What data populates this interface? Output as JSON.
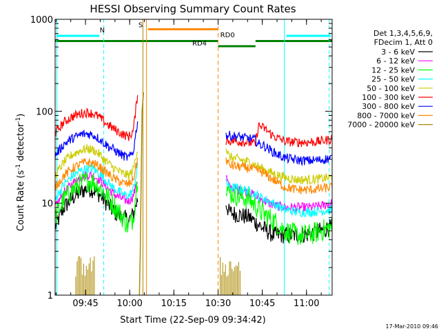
{
  "chart_data": {
    "type": "line",
    "title": "HESSI Observing Summary Count Rates",
    "xlabel": "Start Time (22-Sep-09 09:34:42)",
    "ylabel": "Count Rate (s",
    "ylabel_sup": "-1",
    "ylabel_tail": " detector",
    "ylabel_tail_sup": "-1",
    "ylabel_close": ")",
    "x_unit": "minutes after 09:34:42",
    "xlim": [
      0,
      94
    ],
    "ylim": [
      1,
      1000
    ],
    "yscale": "log",
    "grid": false,
    "x_ticks": [
      {
        "label": "09:45",
        "value": 10.3
      },
      {
        "label": "10:00",
        "value": 25.3
      },
      {
        "label": "10:15",
        "value": 40.3
      },
      {
        "label": "10:30",
        "value": 55.3
      },
      {
        "label": "10:45",
        "value": 70.3
      },
      {
        "label": "11:00",
        "value": 85.3
      }
    ],
    "y_ticks": [
      {
        "label": "1",
        "value": 1
      },
      {
        "label": "10",
        "value": 10
      },
      {
        "label": "100",
        "value": 100
      },
      {
        "label": "1000",
        "value": 1000
      }
    ],
    "legend": {
      "header": [
        "Det 1,3,4,5,6,9,",
        "FDecim 1, Att 0"
      ],
      "placement": "right"
    },
    "series": [
      {
        "name": "3 - 6 keV",
        "color": "#000000",
        "segments": [
          [
            [
              0,
              5.5
            ],
            [
              3,
              9
            ],
            [
              6,
              11.5
            ],
            [
              9,
              13.5
            ],
            [
              11,
              14.5
            ],
            [
              13,
              14
            ],
            [
              15,
              12.5
            ],
            [
              17,
              10.5
            ],
            [
              20,
              8
            ],
            [
              23,
              7
            ],
            [
              25,
              6.5
            ],
            [
              26.5,
              7.5
            ],
            [
              28,
              11
            ]
          ],
          [
            [
              58,
              10
            ],
            [
              59,
              8
            ],
            [
              62,
              7.5
            ],
            [
              66,
              7
            ],
            [
              70,
              5.5
            ],
            [
              74,
              4.5
            ],
            [
              78,
              4.5
            ],
            [
              82,
              4.5
            ],
            [
              86,
              4.6
            ],
            [
              90,
              5
            ],
            [
              94,
              5.5
            ]
          ]
        ]
      },
      {
        "name": "6 - 12 keV",
        "color": "#ff00ff",
        "segments": [
          [
            [
              0,
              9
            ],
            [
              3,
              13
            ],
            [
              6,
              16.5
            ],
            [
              9,
              19.5
            ],
            [
              11,
              20.5
            ],
            [
              13,
              20
            ],
            [
              15,
              18
            ],
            [
              17,
              15.5
            ],
            [
              20,
              12.5
            ],
            [
              23,
              11
            ],
            [
              25,
              10.5
            ],
            [
              26.5,
              12
            ],
            [
              28,
              18
            ]
          ],
          [
            [
              58,
              20
            ],
            [
              59,
              15
            ],
            [
              62,
              14
            ],
            [
              66,
              13
            ],
            [
              70,
              11
            ],
            [
              74,
              9.5
            ],
            [
              78,
              9
            ],
            [
              82,
              9
            ],
            [
              86,
              9
            ],
            [
              90,
              9.3
            ],
            [
              94,
              10
            ]
          ]
        ]
      },
      {
        "name": "12 - 25 keV",
        "color": "#00ff00",
        "segments": [
          [
            [
              0,
              7
            ],
            [
              3,
              11
            ],
            [
              6,
              14
            ],
            [
              9,
              16.5
            ],
            [
              11,
              17.5
            ],
            [
              13,
              17
            ],
            [
              15,
              15
            ],
            [
              17,
              12.5
            ],
            [
              20,
              9.5
            ],
            [
              23,
              7
            ],
            [
              25,
              5.5
            ],
            [
              26.5,
              7
            ],
            [
              28,
              20
            ]
          ],
          [
            [
              58,
              16
            ],
            [
              59,
              13
            ],
            [
              62,
              12
            ],
            [
              66,
              11
            ],
            [
              70,
              8
            ],
            [
              74,
              6.5
            ],
            [
              78,
              5
            ],
            [
              82,
              4.5
            ],
            [
              86,
              4.5
            ],
            [
              90,
              5
            ],
            [
              94,
              5.5
            ]
          ]
        ]
      },
      {
        "name": "25 - 50 keV",
        "color": "#00ffff",
        "segments": [
          [
            [
              0,
              11
            ],
            [
              3,
              16
            ],
            [
              6,
              20
            ],
            [
              9,
              23
            ],
            [
              11,
              24
            ],
            [
              13,
              23.5
            ],
            [
              15,
              21
            ],
            [
              17,
              18
            ],
            [
              20,
              14.5
            ],
            [
              23,
              12.5
            ],
            [
              25,
              12
            ],
            [
              26.5,
              14
            ],
            [
              28,
              25
            ]
          ],
          [
            [
              58,
              18
            ],
            [
              59,
              15
            ],
            [
              62,
              14.5
            ],
            [
              66,
              13.5
            ],
            [
              70,
              11.5
            ],
            [
              74,
              10
            ],
            [
              78,
              8.5
            ],
            [
              82,
              8
            ],
            [
              86,
              8
            ],
            [
              90,
              8.2
            ],
            [
              94,
              8.5
            ]
          ]
        ]
      },
      {
        "name": "50 - 100 keV",
        "color": "#cccc00",
        "segments": [
          [
            [
              0,
              20
            ],
            [
              3,
              28
            ],
            [
              6,
              34
            ],
            [
              9,
              38
            ],
            [
              11,
              39
            ],
            [
              13,
              38
            ],
            [
              15,
              34
            ],
            [
              17,
              29
            ],
            [
              20,
              24
            ],
            [
              23,
              21
            ],
            [
              25,
              20
            ],
            [
              26.5,
              23
            ],
            [
              28,
              40
            ]
          ],
          [
            [
              58,
              40
            ],
            [
              59,
              32
            ],
            [
              62,
              30
            ],
            [
              66,
              28
            ],
            [
              70,
              24
            ],
            [
              74,
              21
            ],
            [
              78,
              19
            ],
            [
              82,
              18
            ],
            [
              86,
              18
            ],
            [
              90,
              18.5
            ],
            [
              94,
              19
            ]
          ]
        ]
      },
      {
        "name": "100 - 300 keV",
        "color": "#ff0000",
        "segments": [
          [
            [
              0,
              58
            ],
            [
              3,
              76
            ],
            [
              6,
              88
            ],
            [
              9,
              95
            ],
            [
              11,
              97
            ],
            [
              13,
              94
            ],
            [
              15,
              86
            ],
            [
              17,
              75
            ],
            [
              20,
              64
            ],
            [
              23,
              56
            ],
            [
              25,
              53
            ],
            [
              26.5,
              60
            ],
            [
              28,
              155
            ]
          ],
          [
            [
              58,
              48
            ],
            [
              62,
              47
            ],
            [
              65,
              46
            ],
            [
              67,
              45
            ],
            [
              68,
              44
            ],
            [
              69,
              70
            ],
            [
              71,
              65
            ],
            [
              74,
              54
            ],
            [
              78,
              47
            ],
            [
              82,
              46
            ],
            [
              86,
              46
            ],
            [
              90,
              47
            ],
            [
              94,
              50
            ]
          ]
        ]
      },
      {
        "name": "300 - 800 keV",
        "color": "#0000ff",
        "segments": [
          [
            [
              0,
              33
            ],
            [
              3,
              44
            ],
            [
              6,
              51
            ],
            [
              9,
              56
            ],
            [
              11,
              57
            ],
            [
              13,
              55
            ],
            [
              15,
              50
            ],
            [
              17,
              44
            ],
            [
              20,
              38
            ],
            [
              23,
              33
            ],
            [
              25,
              31
            ],
            [
              26.5,
              36
            ],
            [
              28,
              80
            ]
          ],
          [
            [
              58,
              55
            ],
            [
              62,
              53
            ],
            [
              65,
              51
            ],
            [
              67,
              50
            ],
            [
              68,
              49
            ],
            [
              69,
              44
            ],
            [
              71,
              42
            ],
            [
              74,
              36
            ],
            [
              78,
              31
            ],
            [
              82,
              29.5
            ],
            [
              86,
              29
            ],
            [
              90,
              29.5
            ],
            [
              94,
              31
            ]
          ]
        ]
      },
      {
        "name": "800 - 7000 keV",
        "color": "#ff8800",
        "segments": [
          [
            [
              0,
              15
            ],
            [
              3,
              20
            ],
            [
              6,
              24
            ],
            [
              9,
              27
            ],
            [
              11,
              28
            ],
            [
              13,
              27
            ],
            [
              15,
              25
            ],
            [
              17,
              22
            ],
            [
              20,
              18.5
            ],
            [
              23,
              16.5
            ],
            [
              25,
              16
            ],
            [
              26.5,
              18
            ],
            [
              28,
              30
            ]
          ],
          [
            [
              58,
              30
            ],
            [
              59,
              26
            ],
            [
              62,
              25
            ],
            [
              66,
              24
            ],
            [
              70,
              22
            ],
            [
              74,
              18
            ],
            [
              78,
              15
            ],
            [
              82,
              14
            ],
            [
              86,
              14
            ],
            [
              90,
              14.3
            ],
            [
              94,
              15
            ]
          ]
        ]
      },
      {
        "name": "7000 - 20000 keV",
        "color": "#aa8800",
        "segments": []
      }
    ],
    "annotations": [
      {
        "label": "N",
        "color": "#00ffff",
        "x": 16,
        "y": 720
      },
      {
        "label": "S",
        "color": "#ff8800",
        "x": 29,
        "y": 820
      },
      {
        "label": "RD0",
        "color": "#008000",
        "x": 58.5,
        "y": 640
      },
      {
        "label": "RD4",
        "color": "#008000",
        "x": 49,
        "y": 520
      }
    ],
    "footer_date": "17-Mar-2010 09:46"
  }
}
